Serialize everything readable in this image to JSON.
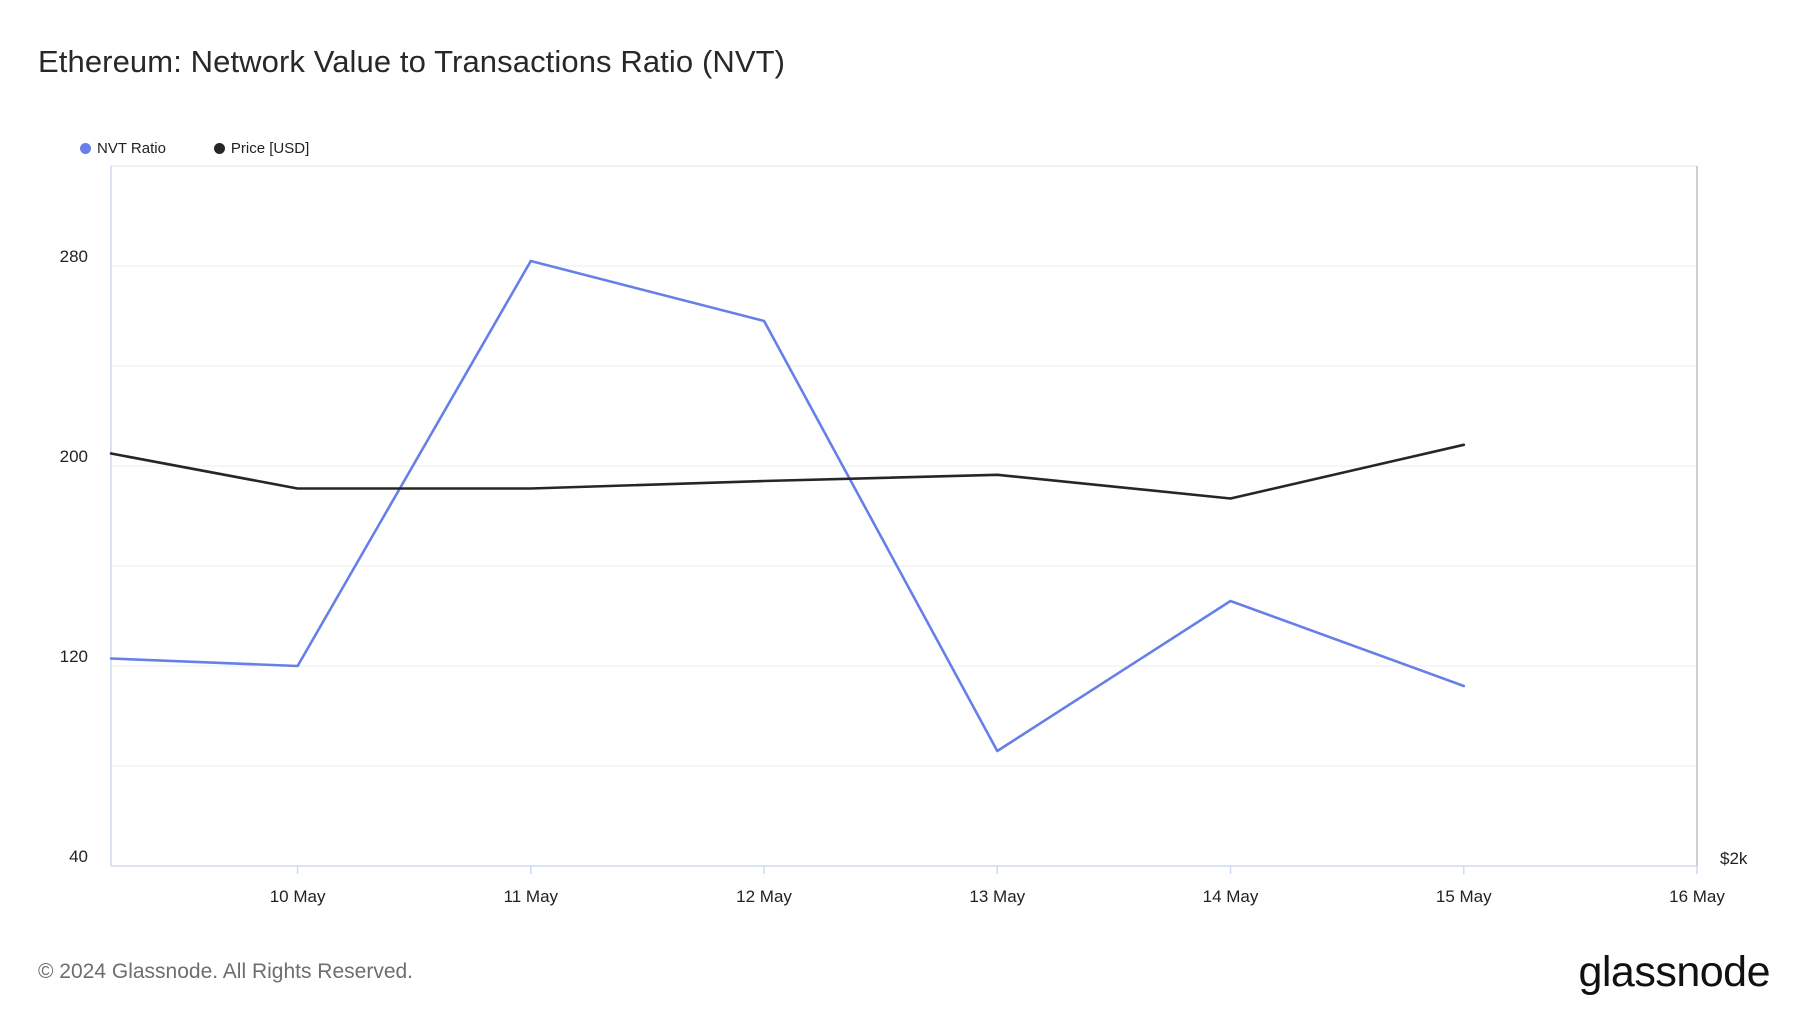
{
  "header": {
    "title": "Ethereum: Network Value to Transactions Ratio (NVT)"
  },
  "legend": {
    "items": [
      {
        "label": "NVT Ratio",
        "color": "#6680e8"
      },
      {
        "label": "Price [USD]",
        "color": "#262626"
      }
    ]
  },
  "footer": {
    "copyright": "© 2024 Glassnode. All Rights Reserved.",
    "brand": "glassnode"
  },
  "chart_data": {
    "type": "line",
    "title": "Ethereum: Network Value to Transactions Ratio (NVT)",
    "x_ticks": [
      "10 May",
      "11 May",
      "12 May",
      "13 May",
      "14 May",
      "15 May",
      "16 May"
    ],
    "x_range": [
      9.2,
      16
    ],
    "left_axis": {
      "ticks": [
        40,
        120,
        200,
        280
      ],
      "range": [
        40,
        320
      ]
    },
    "right_axis": {
      "ticks": [
        "$2k"
      ]
    },
    "grid": true,
    "legend_position": "top-left",
    "series": [
      {
        "name": "NVT Ratio",
        "color": "#6680e8",
        "axis": "left",
        "x": [
          9.2,
          10,
          11,
          12,
          13,
          14,
          15
        ],
        "y": [
          123,
          120,
          282,
          258,
          86,
          146,
          112
        ]
      },
      {
        "name": "Price [USD]",
        "color": "#262626",
        "axis": "left",
        "x": [
          9.2,
          10,
          11,
          12,
          13,
          14,
          15
        ],
        "y": [
          205,
          191,
          191,
          194,
          196.5,
          187,
          208.5
        ]
      }
    ]
  }
}
